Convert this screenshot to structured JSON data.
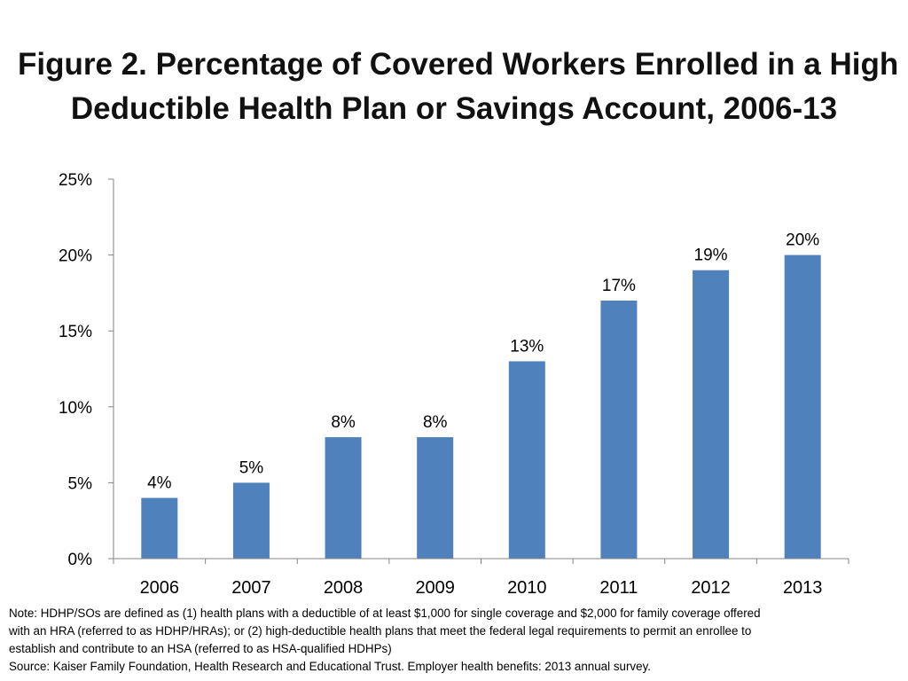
{
  "slide": {
    "title_line1": "Figure 2. Percentage of Covered Workers Enrolled in a High",
    "title_line2": "Deductible Health Plan or Savings Account, 2006-13",
    "note_line1": "Note: HDHP/SOs are defined as (1) health plans with a deductible of at least $1,000 for single coverage and $2,000 for family coverage offered",
    "note_line2": "with an HRA (referred to as HDHP/HRAs); or (2) high-deductible health plans that meet the federal legal requirements to permit an enrollee to",
    "note_line3": "establish and contribute to an HSA (referred to as HSA-qualified HDHPs)",
    "source": "Source: Kaiser Family Foundation, Health Research and Educational Trust. Employer health benefits: 2013 annual survey."
  },
  "chart_data": {
    "type": "bar",
    "title": "Figure 2. Percentage of Covered Workers Enrolled in a High Deductible Health Plan or Savings Account, 2006-13",
    "xlabel": "",
    "ylabel": "",
    "categories": [
      "2006",
      "2007",
      "2008",
      "2009",
      "2010",
      "2011",
      "2012",
      "2013"
    ],
    "values": [
      4,
      5,
      8,
      8,
      13,
      17,
      19,
      20
    ],
    "data_labels": [
      "4%",
      "5%",
      "8%",
      "8%",
      "13%",
      "17%",
      "19%",
      "20%"
    ],
    "ylim": [
      0,
      25
    ],
    "yticks": [
      0,
      5,
      10,
      15,
      20,
      25
    ],
    "ytick_labels": [
      "0%",
      "5%",
      "10%",
      "15%",
      "20%",
      "25%"
    ],
    "grid": false,
    "legend": "none",
    "bar_color": "#4f81bd"
  }
}
